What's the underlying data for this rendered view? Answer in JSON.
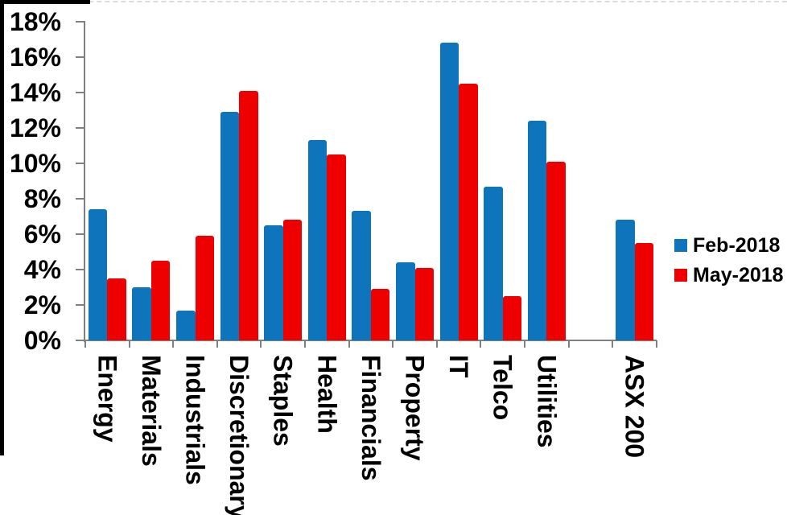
{
  "chart_data": {
    "type": "bar",
    "title": "",
    "xlabel": "",
    "ylabel": "",
    "categories": [
      "Energy",
      "Materials",
      "Industrials",
      "Discretionary",
      "Staples",
      "Health",
      "Financials",
      "Property",
      "IT",
      "Telco",
      "Utilities",
      "",
      "ASX 200"
    ],
    "series": [
      {
        "name": "Feb-2018",
        "color": "#0E74BC",
        "values": [
          7.4,
          3.0,
          1.7,
          12.9,
          6.5,
          11.3,
          7.3,
          4.4,
          16.8,
          8.7,
          12.4,
          null,
          6.8
        ]
      },
      {
        "name": "May-2018",
        "color": "#EE0000",
        "values": [
          3.5,
          4.5,
          5.9,
          14.1,
          6.8,
          10.5,
          2.9,
          4.1,
          14.5,
          2.5,
          10.1,
          null,
          5.5
        ]
      }
    ],
    "ylim": [
      0,
      18
    ],
    "ytick_step": 2,
    "ytick_labels": [
      "0%",
      "2%",
      "4%",
      "6%",
      "8%",
      "10%",
      "12%",
      "14%",
      "16%",
      "18%"
    ],
    "grid": false,
    "legend_position": "right-middle"
  },
  "colors": {
    "axis": "#808080",
    "text": "#000000",
    "background": "#FFFFFF"
  }
}
